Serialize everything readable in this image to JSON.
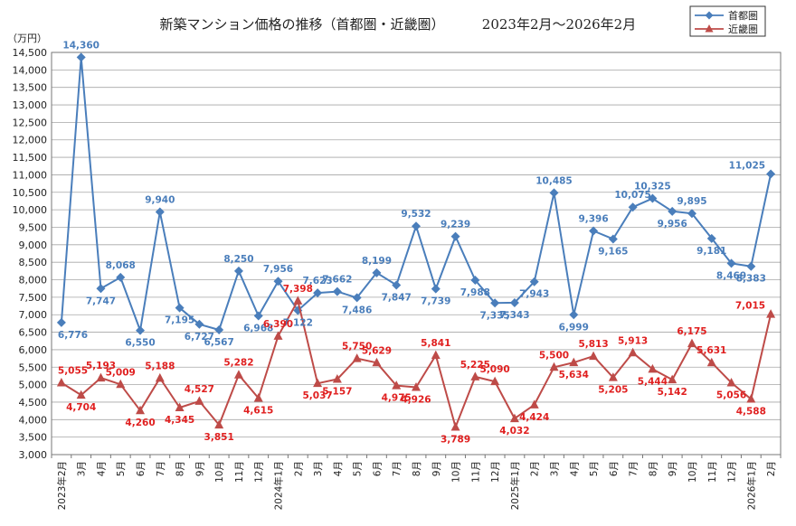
{
  "chart_data": {
    "type": "line",
    "title": "新築マンション価格の推移（首都圏・近畿圏）",
    "subtitle": "2023年2月～2026年2月",
    "ylabel": "（万円）",
    "xlabel": "",
    "ylim": [
      3000,
      14500
    ],
    "ystep": 500,
    "grid": true,
    "legend_position": "top-right",
    "categories": [
      "2023年2月",
      "3月",
      "4月",
      "5月",
      "6月",
      "7月",
      "8月",
      "9月",
      "10月",
      "11月",
      "12月",
      "2024年1月",
      "2月",
      "3月",
      "4月",
      "5月",
      "6月",
      "7月",
      "8月",
      "9月",
      "10月",
      "11月",
      "12月",
      "2025年1月",
      "2月",
      "3月",
      "4月",
      "5月",
      "6月",
      "7月",
      "8月",
      "9月",
      "10月",
      "11月",
      "12月",
      "2026年1月",
      "2月"
    ],
    "series": [
      {
        "name": "首都圏",
        "color": "#4a7ebb",
        "marker": "diamond",
        "values": [
          6776,
          14360,
          7747,
          8068,
          6550,
          9940,
          7195,
          6727,
          6567,
          8250,
          6968,
          7956,
          7122,
          7623,
          7662,
          7486,
          8199,
          7847,
          9532,
          7739,
          9239,
          7988,
          7335,
          7343,
          7943,
          10485,
          6999,
          9396,
          9165,
          10075,
          10325,
          9956,
          9895,
          9181,
          8469,
          8383,
          11025
        ]
      },
      {
        "name": "近畿圏",
        "color": "#be4b48",
        "label_color": "#e02020",
        "marker": "triangle",
        "values": [
          5055,
          4704,
          5193,
          5009,
          4260,
          5188,
          4345,
          4527,
          3851,
          5282,
          4615,
          6390,
          7398,
          5037,
          5157,
          5750,
          5629,
          4975,
          4926,
          5841,
          3789,
          5225,
          5090,
          4032,
          4424,
          5500,
          5634,
          5813,
          5205,
          5913,
          5444,
          5142,
          6175,
          5631,
          5056,
          4588,
          7015
        ]
      }
    ]
  }
}
